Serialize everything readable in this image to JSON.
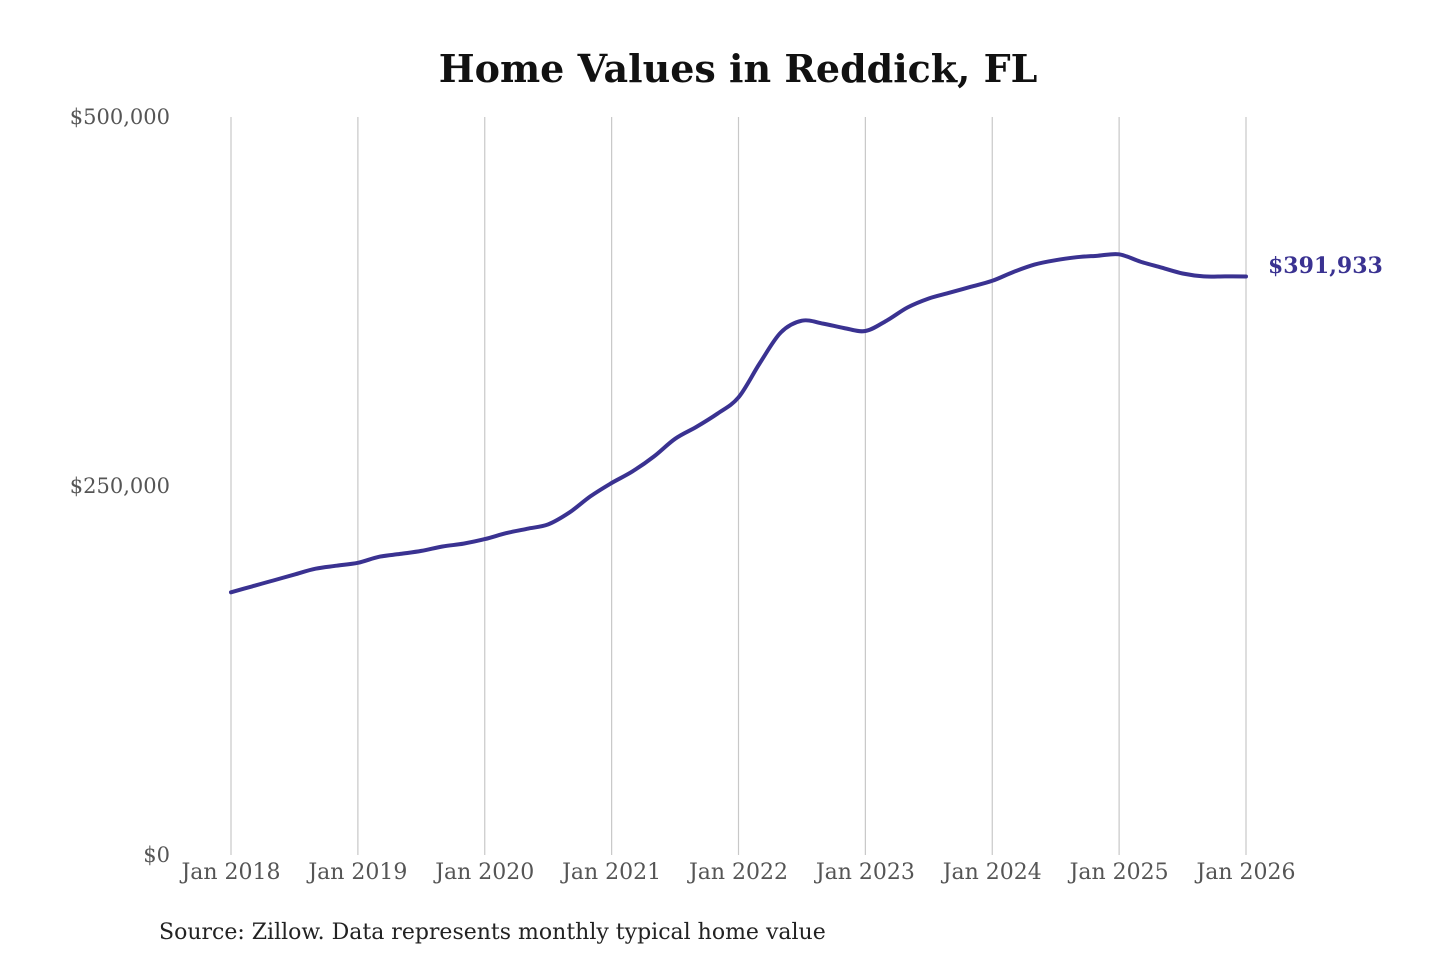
{
  "chart_data": {
    "type": "line",
    "title": "Home Values in Reddick, FL",
    "xlabel": "",
    "ylabel": "",
    "ylim": [
      0,
      500000
    ],
    "y_ticks": [
      {
        "value": 0,
        "label": "$0"
      },
      {
        "value": 250000,
        "label": "$250,000"
      },
      {
        "value": 500000,
        "label": "$500,000"
      }
    ],
    "x_ticks": [
      {
        "value": "2018-01",
        "label": "Jan 2018"
      },
      {
        "value": "2019-01",
        "label": "Jan 2019"
      },
      {
        "value": "2020-01",
        "label": "Jan 2020"
      },
      {
        "value": "2021-01",
        "label": "Jan 2021"
      },
      {
        "value": "2022-01",
        "label": "Jan 2022"
      },
      {
        "value": "2023-01",
        "label": "Jan 2023"
      },
      {
        "value": "2024-01",
        "label": "Jan 2024"
      },
      {
        "value": "2025-01",
        "label": "Jan 2025"
      },
      {
        "value": "2026-01",
        "label": "Jan 2026"
      }
    ],
    "grid": {
      "vertical": true,
      "horizontal": false
    },
    "line_color": "#3a3291",
    "series": [
      {
        "x": [
          "2018-01",
          "2018-03",
          "2018-05",
          "2018-07",
          "2018-09",
          "2018-11",
          "2019-01",
          "2019-03",
          "2019-05",
          "2019-07",
          "2019-09",
          "2019-11",
          "2020-01",
          "2020-03",
          "2020-05",
          "2020-07",
          "2020-09",
          "2020-11",
          "2021-01",
          "2021-03",
          "2021-05",
          "2021-07",
          "2021-09",
          "2021-11",
          "2022-01",
          "2022-03",
          "2022-05",
          "2022-07",
          "2022-09",
          "2022-11",
          "2023-01",
          "2023-03",
          "2023-05",
          "2023-07",
          "2023-09",
          "2023-11",
          "2024-01",
          "2024-03",
          "2024-05",
          "2024-07",
          "2024-09",
          "2024-11",
          "2025-01",
          "2025-03",
          "2025-05",
          "2025-07",
          "2025-09",
          "2025-11",
          "2026-01"
        ],
        "values": [
          178000,
          182000,
          186000,
          190000,
          194000,
          196000,
          198000,
          202000,
          204000,
          206000,
          209000,
          211000,
          214000,
          218000,
          221000,
          224000,
          232000,
          243000,
          252000,
          260000,
          270000,
          282000,
          290000,
          299000,
          310000,
          333000,
          354000,
          362000,
          360000,
          357000,
          355000,
          362000,
          371000,
          377000,
          381000,
          385000,
          389000,
          395000,
          400000,
          403000,
          405000,
          406000,
          407000,
          402000,
          398000,
          394000,
          392000,
          392000,
          391933
        ]
      }
    ],
    "end_label": "$391,933",
    "source": "Source: Zillow. Data represents monthly typical home value"
  }
}
